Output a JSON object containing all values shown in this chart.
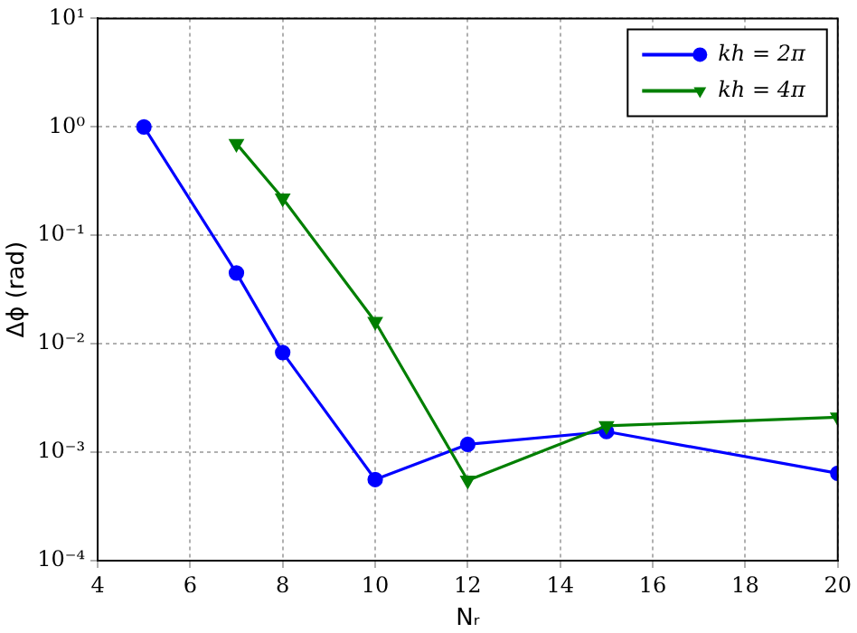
{
  "chart_data": {
    "type": "line",
    "xlabel": "Nᵣ",
    "ylabel": "Δϕ (rad)",
    "xlim": [
      4,
      20
    ],
    "xticks": [
      4,
      6,
      8,
      10,
      12,
      14,
      16,
      18,
      20
    ],
    "ylim": [
      0.0001,
      10
    ],
    "log": "y",
    "yticks": [
      {
        "value": 0.0001,
        "label": "10⁻⁴"
      },
      {
        "value": 0.001,
        "label": "10⁻³"
      },
      {
        "value": 0.01,
        "label": "10⁻²"
      },
      {
        "value": 0.1,
        "label": "10⁻¹"
      },
      {
        "value": 1,
        "label": "10⁰"
      },
      {
        "value": 10,
        "label": "10¹"
      }
    ],
    "grid": true,
    "legend": "top right",
    "line_style": "solid",
    "series": [
      {
        "name": "kh = 2π",
        "color": "#0000ff",
        "marker": "circle",
        "x": [
          5,
          7,
          8,
          10,
          12,
          15,
          20
        ],
        "values": [
          1.0,
          0.045,
          0.0083,
          0.00056,
          0.00118,
          0.00155,
          0.00064
        ]
      },
      {
        "name": "kh = 4π",
        "color": "#007f00",
        "marker": "triangle",
        "x": [
          7,
          8,
          10,
          12,
          15,
          20
        ],
        "values": [
          0.7,
          0.22,
          0.016,
          0.00055,
          0.00175,
          0.0021
        ]
      }
    ]
  }
}
